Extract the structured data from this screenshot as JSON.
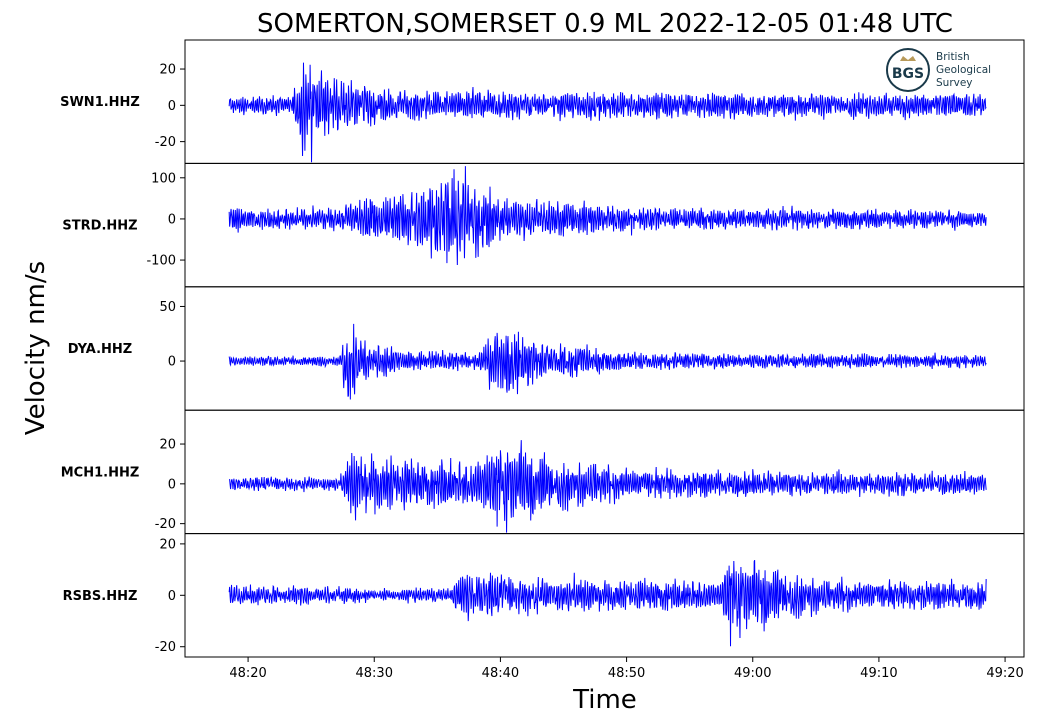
{
  "chart_data": {
    "type": "line",
    "title": "SOMERTON,SOMERSET 0.9 ML   2022-12-05 01:48 UTC",
    "xlabel": "Time",
    "ylabel": "Velocity nm/s",
    "x_unit": "seconds after 01:48:00 UTC",
    "x_range": [
      15,
      81.5
    ],
    "x_data_range": [
      18.5,
      78.5
    ],
    "x_ticks": [
      {
        "value": 20,
        "label": "48:20"
      },
      {
        "value": 30,
        "label": "48:30"
      },
      {
        "value": 40,
        "label": "48:40"
      },
      {
        "value": 50,
        "label": "48:50"
      },
      {
        "value": 60,
        "label": "49:00"
      },
      {
        "value": 70,
        "label": "49:10"
      },
      {
        "value": 80,
        "label": "49:20"
      }
    ],
    "line_color": "#0000ff",
    "grid": false,
    "series": [
      {
        "name": "SWN1.HHZ",
        "ylim": [
          -32,
          36
        ],
        "yticks": [
          {
            "value": 20,
            "label": "20"
          },
          {
            "value": 0,
            "label": "0"
          },
          {
            "value": -20,
            "label": "-20"
          }
        ],
        "noise_amplitude": 6,
        "envelope": [
          {
            "x": 18.5,
            "amp": 6
          },
          {
            "x": 23.5,
            "amp": 6
          },
          {
            "x": 24.2,
            "amp": 32
          },
          {
            "x": 26.5,
            "amp": 20
          },
          {
            "x": 30,
            "amp": 12
          },
          {
            "x": 35,
            "amp": 9
          },
          {
            "x": 45,
            "amp": 9
          },
          {
            "x": 60,
            "amp": 8
          },
          {
            "x": 78.5,
            "amp": 8
          }
        ]
      },
      {
        "name": "STRD.HHZ",
        "ylim": [
          -165,
          135
        ],
        "yticks": [
          {
            "value": 100,
            "label": "100"
          },
          {
            "value": 0,
            "label": "0"
          },
          {
            "value": -100,
            "label": "-100"
          }
        ],
        "noise_amplitude": 25,
        "envelope": [
          {
            "x": 18.5,
            "amp": 40
          },
          {
            "x": 22,
            "amp": 25
          },
          {
            "x": 27,
            "amp": 35
          },
          {
            "x": 30,
            "amp": 60
          },
          {
            "x": 35,
            "amp": 95
          },
          {
            "x": 36.3,
            "amp": 140
          },
          {
            "x": 40,
            "amp": 65
          },
          {
            "x": 46,
            "amp": 45
          },
          {
            "x": 55,
            "amp": 30
          },
          {
            "x": 78.5,
            "amp": 25
          }
        ]
      },
      {
        "name": "DYA.HHZ",
        "ylim": [
          -45,
          68
        ],
        "yticks": [
          {
            "value": 50,
            "label": "50"
          },
          {
            "value": 0,
            "label": "0"
          }
        ],
        "noise_amplitude": 5,
        "envelope": [
          {
            "x": 18.5,
            "amp": 5
          },
          {
            "x": 27.4,
            "amp": 5
          },
          {
            "x": 27.7,
            "amp": 55
          },
          {
            "x": 29.5,
            "amp": 20
          },
          {
            "x": 33,
            "amp": 10
          },
          {
            "x": 38,
            "amp": 10
          },
          {
            "x": 40.8,
            "amp": 42
          },
          {
            "x": 43,
            "amp": 22
          },
          {
            "x": 50,
            "amp": 9
          },
          {
            "x": 78.5,
            "amp": 6
          }
        ]
      },
      {
        "name": "MCH1.HHZ",
        "ylim": [
          -25,
          37
        ],
        "yticks": [
          {
            "value": 20,
            "label": "20"
          },
          {
            "value": 0,
            "label": "0"
          },
          {
            "value": -20,
            "label": "-20"
          }
        ],
        "noise_amplitude": 4,
        "envelope": [
          {
            "x": 18.5,
            "amp": 4
          },
          {
            "x": 27.3,
            "amp": 4
          },
          {
            "x": 28.3,
            "amp": 20
          },
          {
            "x": 33,
            "amp": 14
          },
          {
            "x": 38,
            "amp": 14
          },
          {
            "x": 40.6,
            "amp": 30
          },
          {
            "x": 43,
            "amp": 17
          },
          {
            "x": 50,
            "amp": 9
          },
          {
            "x": 60,
            "amp": 7
          },
          {
            "x": 78.5,
            "amp": 6
          }
        ]
      },
      {
        "name": "RSBS.HHZ",
        "ylim": [
          -24,
          24
        ],
        "yticks": [
          {
            "value": 20,
            "label": "20"
          },
          {
            "value": 0,
            "label": "0"
          },
          {
            "value": -20,
            "label": "-20"
          }
        ],
        "noise_amplitude": 4,
        "envelope": [
          {
            "x": 18.5,
            "amp": 5
          },
          {
            "x": 30,
            "amp": 3
          },
          {
            "x": 36,
            "amp": 3
          },
          {
            "x": 37,
            "amp": 11
          },
          {
            "x": 42,
            "amp": 8
          },
          {
            "x": 52,
            "amp": 7
          },
          {
            "x": 57.5,
            "amp": 7
          },
          {
            "x": 58.2,
            "amp": 22
          },
          {
            "x": 61.5,
            "amp": 13
          },
          {
            "x": 66,
            "amp": 7
          },
          {
            "x": 78.5,
            "amp": 6
          }
        ]
      }
    ]
  },
  "logo": {
    "abbrev": "BGS",
    "lines": [
      "British",
      "Geological",
      "Survey"
    ],
    "color_dark": "#1a3a4a",
    "color_accent": "#b89a5a"
  }
}
